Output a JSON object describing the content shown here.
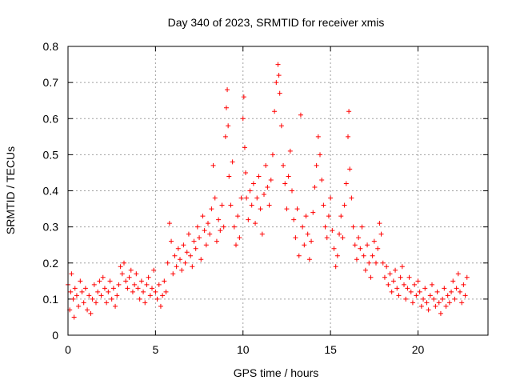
{
  "chart_data": {
    "type": "scatter",
    "title": "Day 340 of 2023, SRMTID for receiver xmis",
    "xlabel": "GPS time / hours",
    "ylabel": "SRMTID / TECUs",
    "xlim": [
      0,
      24
    ],
    "ylim": [
      0,
      0.8
    ],
    "xticks": [
      0,
      5,
      10,
      15,
      20
    ],
    "yticks": [
      0,
      0.1,
      0.2,
      0.3,
      0.4,
      0.5,
      0.6,
      0.7,
      0.8
    ],
    "xtick_labels": [
      "0",
      "5",
      "10",
      "15",
      "20"
    ],
    "ytick_labels": [
      "0",
      "0.1",
      "0.2",
      "0.3",
      "0.4",
      "0.5",
      "0.6",
      "0.7",
      "0.8"
    ],
    "grid": true,
    "marker": "+",
    "marker_color": "#ff0000",
    "series": [
      {
        "name": "SRMTID",
        "points": [
          [
            0.0,
            0.14
          ],
          [
            0.1,
            0.07
          ],
          [
            0.15,
            0.12
          ],
          [
            0.2,
            0.17
          ],
          [
            0.3,
            0.1
          ],
          [
            0.35,
            0.05
          ],
          [
            0.4,
            0.13
          ],
          [
            0.5,
            0.11
          ],
          [
            0.6,
            0.08
          ],
          [
            0.7,
            0.15
          ],
          [
            0.8,
            0.12
          ],
          [
            0.9,
            0.09
          ],
          [
            1.0,
            0.13
          ],
          [
            1.1,
            0.07
          ],
          [
            1.2,
            0.11
          ],
          [
            1.3,
            0.06
          ],
          [
            1.4,
            0.1
          ],
          [
            1.5,
            0.14
          ],
          [
            1.6,
            0.09
          ],
          [
            1.7,
            0.12
          ],
          [
            1.8,
            0.15
          ],
          [
            1.9,
            0.11
          ],
          [
            2.0,
            0.16
          ],
          [
            2.1,
            0.13
          ],
          [
            2.2,
            0.09
          ],
          [
            2.3,
            0.12
          ],
          [
            2.4,
            0.15
          ],
          [
            2.5,
            0.1
          ],
          [
            2.6,
            0.13
          ],
          [
            2.7,
            0.08
          ],
          [
            2.8,
            0.11
          ],
          [
            2.9,
            0.14
          ],
          [
            3.0,
            0.19
          ],
          [
            3.1,
            0.17
          ],
          [
            3.2,
            0.2
          ],
          [
            3.3,
            0.15
          ],
          [
            3.4,
            0.13
          ],
          [
            3.5,
            0.16
          ],
          [
            3.6,
            0.18
          ],
          [
            3.7,
            0.12
          ],
          [
            3.8,
            0.14
          ],
          [
            3.9,
            0.17
          ],
          [
            4.0,
            0.13
          ],
          [
            4.1,
            0.1
          ],
          [
            4.2,
            0.15
          ],
          [
            4.3,
            0.12
          ],
          [
            4.4,
            0.09
          ],
          [
            4.5,
            0.14
          ],
          [
            4.6,
            0.16
          ],
          [
            4.7,
            0.11
          ],
          [
            4.8,
            0.13
          ],
          [
            4.9,
            0.18
          ],
          [
            5.0,
            0.12
          ],
          [
            5.1,
            0.1
          ],
          [
            5.2,
            0.14
          ],
          [
            5.3,
            0.08
          ],
          [
            5.4,
            0.11
          ],
          [
            5.5,
            0.15
          ],
          [
            5.6,
            0.12
          ],
          [
            5.7,
            0.2
          ],
          [
            5.8,
            0.31
          ],
          [
            5.9,
            0.26
          ],
          [
            6.0,
            0.17
          ],
          [
            6.1,
            0.22
          ],
          [
            6.2,
            0.19
          ],
          [
            6.3,
            0.24
          ],
          [
            6.4,
            0.21
          ],
          [
            6.5,
            0.18
          ],
          [
            6.6,
            0.25
          ],
          [
            6.7,
            0.2
          ],
          [
            6.8,
            0.23
          ],
          [
            6.9,
            0.28
          ],
          [
            7.0,
            0.22
          ],
          [
            7.1,
            0.19
          ],
          [
            7.2,
            0.26
          ],
          [
            7.3,
            0.24
          ],
          [
            7.4,
            0.3
          ],
          [
            7.5,
            0.27
          ],
          [
            7.6,
            0.21
          ],
          [
            7.7,
            0.33
          ],
          [
            7.8,
            0.29
          ],
          [
            7.9,
            0.25
          ],
          [
            8.0,
            0.31
          ],
          [
            8.1,
            0.28
          ],
          [
            8.2,
            0.35
          ],
          [
            8.3,
            0.47
          ],
          [
            8.4,
            0.38
          ],
          [
            8.5,
            0.26
          ],
          [
            8.6,
            0.32
          ],
          [
            8.7,
            0.29
          ],
          [
            8.8,
            0.36
          ],
          [
            8.9,
            0.3
          ],
          [
            9.0,
            0.55
          ],
          [
            9.05,
            0.63
          ],
          [
            9.1,
            0.68
          ],
          [
            9.15,
            0.58
          ],
          [
            9.2,
            0.44
          ],
          [
            9.3,
            0.36
          ],
          [
            9.4,
            0.48
          ],
          [
            9.5,
            0.3
          ],
          [
            9.6,
            0.25
          ],
          [
            9.7,
            0.33
          ],
          [
            9.8,
            0.27
          ],
          [
            9.9,
            0.38
          ],
          [
            10.0,
            0.6
          ],
          [
            10.05,
            0.66
          ],
          [
            10.1,
            0.52
          ],
          [
            10.15,
            0.45
          ],
          [
            10.2,
            0.38
          ],
          [
            10.3,
            0.32
          ],
          [
            10.4,
            0.4
          ],
          [
            10.5,
            0.36
          ],
          [
            10.6,
            0.42
          ],
          [
            10.7,
            0.31
          ],
          [
            10.8,
            0.38
          ],
          [
            10.9,
            0.44
          ],
          [
            11.0,
            0.35
          ],
          [
            11.1,
            0.28
          ],
          [
            11.2,
            0.39
          ],
          [
            11.3,
            0.47
          ],
          [
            11.4,
            0.41
          ],
          [
            11.5,
            0.36
          ],
          [
            11.6,
            0.43
          ],
          [
            11.7,
            0.5
          ],
          [
            11.8,
            0.62
          ],
          [
            11.9,
            0.7
          ],
          [
            12.0,
            0.75
          ],
          [
            12.05,
            0.72
          ],
          [
            12.1,
            0.67
          ],
          [
            12.2,
            0.58
          ],
          [
            12.3,
            0.47
          ],
          [
            12.4,
            0.42
          ],
          [
            12.5,
            0.35
          ],
          [
            12.6,
            0.44
          ],
          [
            12.7,
            0.51
          ],
          [
            12.8,
            0.4
          ],
          [
            12.9,
            0.32
          ],
          [
            13.0,
            0.27
          ],
          [
            13.1,
            0.35
          ],
          [
            13.2,
            0.22
          ],
          [
            13.3,
            0.61
          ],
          [
            13.4,
            0.3
          ],
          [
            13.5,
            0.25
          ],
          [
            13.6,
            0.33
          ],
          [
            13.7,
            0.28
          ],
          [
            13.8,
            0.21
          ],
          [
            13.9,
            0.26
          ],
          [
            14.0,
            0.34
          ],
          [
            14.1,
            0.41
          ],
          [
            14.2,
            0.47
          ],
          [
            14.3,
            0.55
          ],
          [
            14.4,
            0.5
          ],
          [
            14.5,
            0.43
          ],
          [
            14.6,
            0.36
          ],
          [
            14.7,
            0.3
          ],
          [
            14.8,
            0.27
          ],
          [
            14.9,
            0.33
          ],
          [
            15.0,
            0.38
          ],
          [
            15.1,
            0.29
          ],
          [
            15.2,
            0.24
          ],
          [
            15.3,
            0.19
          ],
          [
            15.4,
            0.22
          ],
          [
            15.5,
            0.28
          ],
          [
            15.6,
            0.33
          ],
          [
            15.7,
            0.27
          ],
          [
            15.8,
            0.36
          ],
          [
            15.9,
            0.42
          ],
          [
            16.0,
            0.55
          ],
          [
            16.05,
            0.62
          ],
          [
            16.1,
            0.46
          ],
          [
            16.2,
            0.38
          ],
          [
            16.3,
            0.3
          ],
          [
            16.4,
            0.25
          ],
          [
            16.5,
            0.21
          ],
          [
            16.6,
            0.27
          ],
          [
            16.7,
            0.24
          ],
          [
            16.8,
            0.3
          ],
          [
            16.9,
            0.22
          ],
          [
            17.0,
            0.18
          ],
          [
            17.1,
            0.25
          ],
          [
            17.2,
            0.2
          ],
          [
            17.3,
            0.16
          ],
          [
            17.4,
            0.22
          ],
          [
            17.5,
            0.26
          ],
          [
            17.6,
            0.2
          ],
          [
            17.7,
            0.24
          ],
          [
            17.8,
            0.31
          ],
          [
            17.9,
            0.28
          ],
          [
            18.0,
            0.2
          ],
          [
            18.1,
            0.16
          ],
          [
            18.2,
            0.19
          ],
          [
            18.3,
            0.14
          ],
          [
            18.4,
            0.17
          ],
          [
            18.5,
            0.12
          ],
          [
            18.6,
            0.15
          ],
          [
            18.7,
            0.18
          ],
          [
            18.8,
            0.13
          ],
          [
            18.9,
            0.11
          ],
          [
            19.0,
            0.16
          ],
          [
            19.1,
            0.19
          ],
          [
            19.2,
            0.14
          ],
          [
            19.3,
            0.1
          ],
          [
            19.4,
            0.13
          ],
          [
            19.5,
            0.16
          ],
          [
            19.6,
            0.12
          ],
          [
            19.7,
            0.09
          ],
          [
            19.8,
            0.14
          ],
          [
            19.9,
            0.11
          ],
          [
            20.0,
            0.15
          ],
          [
            20.1,
            0.12
          ],
          [
            20.2,
            0.08
          ],
          [
            20.3,
            0.1
          ],
          [
            20.4,
            0.13
          ],
          [
            20.5,
            0.09
          ],
          [
            20.6,
            0.07
          ],
          [
            20.7,
            0.11
          ],
          [
            20.8,
            0.14
          ],
          [
            20.9,
            0.1
          ],
          [
            21.0,
            0.08
          ],
          [
            21.1,
            0.12
          ],
          [
            21.2,
            0.09
          ],
          [
            21.3,
            0.06
          ],
          [
            21.4,
            0.1
          ],
          [
            21.5,
            0.13
          ],
          [
            21.6,
            0.08
          ],
          [
            21.7,
            0.11
          ],
          [
            21.8,
            0.09
          ],
          [
            21.9,
            0.12
          ],
          [
            22.0,
            0.15
          ],
          [
            22.1,
            0.1
          ],
          [
            22.2,
            0.13
          ],
          [
            22.3,
            0.17
          ],
          [
            22.4,
            0.12
          ],
          [
            22.5,
            0.09
          ],
          [
            22.6,
            0.14
          ],
          [
            22.7,
            0.11
          ],
          [
            22.8,
            0.16
          ]
        ]
      }
    ]
  }
}
